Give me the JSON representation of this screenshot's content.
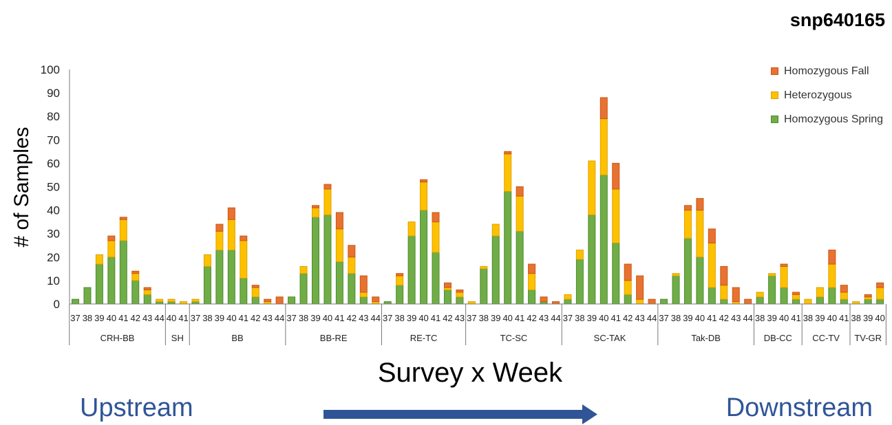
{
  "title": "snp640165",
  "chart_data": {
    "type": "bar",
    "stacked": true,
    "title": "snp640165",
    "xlabel": "Survey x Week",
    "ylabel": "# of Samples",
    "ylim": [
      0,
      100
    ],
    "yticks": [
      0,
      10,
      20,
      30,
      40,
      50,
      60,
      70,
      80,
      90,
      100
    ],
    "legend_position": "top-right",
    "series": [
      {
        "name": "Homozygous Fall",
        "color": "#E97132",
        "stroke": "#C55A11"
      },
      {
        "name": "Heterozygous",
        "color": "#FFC000",
        "stroke": "#D9A300"
      },
      {
        "name": "Homozygous Spring",
        "color": "#70AD47",
        "stroke": "#4E8A2E"
      }
    ],
    "groups": [
      {
        "name": "CRH-BB",
        "bars": [
          {
            "week": "37",
            "spring": 2,
            "het": 0,
            "fall": 0
          },
          {
            "week": "38",
            "spring": 7,
            "het": 0,
            "fall": 0
          },
          {
            "week": "39",
            "spring": 17,
            "het": 4,
            "fall": 0
          },
          {
            "week": "40",
            "spring": 20,
            "het": 7,
            "fall": 2
          },
          {
            "week": "41",
            "spring": 27,
            "het": 9,
            "fall": 1
          },
          {
            "week": "42",
            "spring": 10,
            "het": 3,
            "fall": 1
          },
          {
            "week": "43",
            "spring": 4,
            "het": 2,
            "fall": 1
          },
          {
            "week": "44",
            "spring": 1,
            "het": 1,
            "fall": 0
          }
        ]
      },
      {
        "name": "SH",
        "bars": [
          {
            "week": "40",
            "spring": 1,
            "het": 1,
            "fall": 0
          },
          {
            "week": "41",
            "spring": 0,
            "het": 1,
            "fall": 0
          }
        ]
      },
      {
        "name": "BB",
        "bars": [
          {
            "week": "37",
            "spring": 1,
            "het": 1,
            "fall": 0
          },
          {
            "week": "38",
            "spring": 16,
            "het": 5,
            "fall": 0
          },
          {
            "week": "39",
            "spring": 23,
            "het": 8,
            "fall": 3
          },
          {
            "week": "40",
            "spring": 23,
            "het": 13,
            "fall": 5
          },
          {
            "week": "41",
            "spring": 11,
            "het": 16,
            "fall": 2
          },
          {
            "week": "42",
            "spring": 3,
            "het": 4,
            "fall": 1
          },
          {
            "week": "43",
            "spring": 0,
            "het": 1,
            "fall": 1
          },
          {
            "week": "44",
            "spring": 0,
            "het": 0,
            "fall": 3
          }
        ]
      },
      {
        "name": "BB-RE",
        "bars": [
          {
            "week": "37",
            "spring": 3,
            "het": 0,
            "fall": 0
          },
          {
            "week": "38",
            "spring": 13,
            "het": 3,
            "fall": 0
          },
          {
            "week": "39",
            "spring": 37,
            "het": 4,
            "fall": 1
          },
          {
            "week": "40",
            "spring": 38,
            "het": 11,
            "fall": 2
          },
          {
            "week": "41",
            "spring": 18,
            "het": 14,
            "fall": 7
          },
          {
            "week": "42",
            "spring": 13,
            "het": 7,
            "fall": 5
          },
          {
            "week": "43",
            "spring": 3,
            "het": 2,
            "fall": 7
          },
          {
            "week": "44",
            "spring": 0,
            "het": 1,
            "fall": 2
          }
        ]
      },
      {
        "name": "RE-TC",
        "bars": [
          {
            "week": "37",
            "spring": 1,
            "het": 0,
            "fall": 0
          },
          {
            "week": "38",
            "spring": 8,
            "het": 4,
            "fall": 1
          },
          {
            "week": "39",
            "spring": 29,
            "het": 6,
            "fall": 0
          },
          {
            "week": "40",
            "spring": 40,
            "het": 12,
            "fall": 1
          },
          {
            "week": "41",
            "spring": 22,
            "het": 13,
            "fall": 4
          },
          {
            "week": "42",
            "spring": 6,
            "het": 1,
            "fall": 2
          },
          {
            "week": "43",
            "spring": 3,
            "het": 2,
            "fall": 1
          }
        ]
      },
      {
        "name": "TC-SC",
        "bars": [
          {
            "week": "37",
            "spring": 0,
            "het": 1,
            "fall": 0
          },
          {
            "week": "38",
            "spring": 15,
            "het": 1,
            "fall": 0
          },
          {
            "week": "39",
            "spring": 29,
            "het": 5,
            "fall": 0
          },
          {
            "week": "40",
            "spring": 48,
            "het": 16,
            "fall": 1
          },
          {
            "week": "41",
            "spring": 31,
            "het": 15,
            "fall": 4
          },
          {
            "week": "42",
            "spring": 6,
            "het": 7,
            "fall": 4
          },
          {
            "week": "43",
            "spring": 1,
            "het": 0,
            "fall": 2
          },
          {
            "week": "44",
            "spring": 0,
            "het": 0,
            "fall": 1
          }
        ]
      },
      {
        "name": "SC-TAK",
        "bars": [
          {
            "week": "37",
            "spring": 2,
            "het": 2,
            "fall": 0
          },
          {
            "week": "38",
            "spring": 19,
            "het": 4,
            "fall": 0
          },
          {
            "week": "39",
            "spring": 38,
            "het": 23,
            "fall": 0
          },
          {
            "week": "40",
            "spring": 55,
            "het": 24,
            "fall": 9
          },
          {
            "week": "41",
            "spring": 26,
            "het": 23,
            "fall": 11
          },
          {
            "week": "42",
            "spring": 4,
            "het": 6,
            "fall": 7
          },
          {
            "week": "43",
            "spring": 0,
            "het": 2,
            "fall": 10
          },
          {
            "week": "44",
            "spring": 0,
            "het": 0,
            "fall": 2
          }
        ]
      },
      {
        "name": "Tak-DB",
        "bars": [
          {
            "week": "37",
            "spring": 2,
            "het": 0,
            "fall": 0
          },
          {
            "week": "38",
            "spring": 12,
            "het": 1,
            "fall": 0
          },
          {
            "week": "39",
            "spring": 28,
            "het": 12,
            "fall": 2
          },
          {
            "week": "40",
            "spring": 20,
            "het": 20,
            "fall": 5
          },
          {
            "week": "41",
            "spring": 7,
            "het": 19,
            "fall": 6
          },
          {
            "week": "42",
            "spring": 2,
            "het": 6,
            "fall": 8
          },
          {
            "week": "43",
            "spring": 0,
            "het": 1,
            "fall": 6
          },
          {
            "week": "44",
            "spring": 0,
            "het": 0,
            "fall": 2
          }
        ]
      },
      {
        "name": "DB-CC",
        "bars": [
          {
            "week": "38",
            "spring": 3,
            "het": 2,
            "fall": 0
          },
          {
            "week": "39",
            "spring": 12,
            "het": 1,
            "fall": 0
          },
          {
            "week": "40",
            "spring": 7,
            "het": 9,
            "fall": 1
          },
          {
            "week": "41",
            "spring": 2,
            "het": 2,
            "fall": 1
          }
        ]
      },
      {
        "name": "CC-TV",
        "bars": [
          {
            "week": "38",
            "spring": 0,
            "het": 2,
            "fall": 0
          },
          {
            "week": "39",
            "spring": 3,
            "het": 4,
            "fall": 0
          },
          {
            "week": "40",
            "spring": 7,
            "het": 10,
            "fall": 6
          },
          {
            "week": "41",
            "spring": 2,
            "het": 3,
            "fall": 3
          }
        ]
      },
      {
        "name": "TV-GR",
        "bars": [
          {
            "week": "38",
            "spring": 0,
            "het": 1,
            "fall": 0
          },
          {
            "week": "39",
            "spring": 2,
            "het": 1,
            "fall": 1
          },
          {
            "week": "40",
            "spring": 2,
            "het": 5,
            "fall": 2
          }
        ]
      }
    ]
  },
  "footer": {
    "upstream_label": "Upstream",
    "downstream_label": "Downstream",
    "label_color": "#2F5597",
    "arrow_color": "#2F5597"
  }
}
